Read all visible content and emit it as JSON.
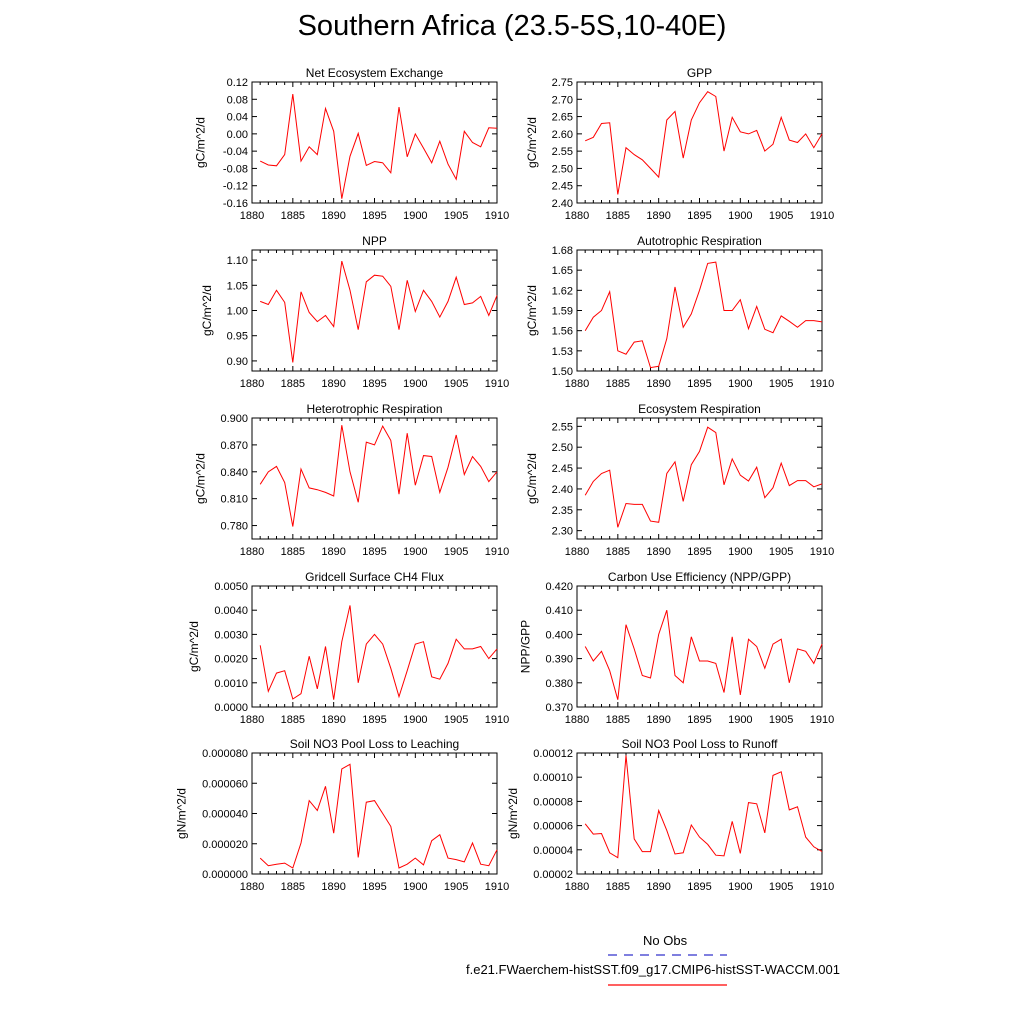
{
  "page": {
    "title": "Southern Africa (23.5-5S,10-40E)"
  },
  "legend": [
    {
      "label": "No Obs",
      "color": "#3333cc",
      "style": "dashed"
    },
    {
      "label": "f.e21.FWaerchem-histSST.f09_g17.CMIP6-histSST-WACCM.001",
      "color": "#ff0000",
      "style": "solid"
    }
  ],
  "colors": {
    "line": "#ff0000",
    "axes": "#000000"
  },
  "chart_data": [
    {
      "type": "line",
      "title": "Net Ecosystem Exchange",
      "xlabel": "",
      "ylabel": "gC/m^2/d",
      "xlim": [
        1880,
        1910
      ],
      "ylim": [
        -0.16,
        0.12
      ],
      "xticks": [
        1880,
        1885,
        1890,
        1895,
        1900,
        1905,
        1910
      ],
      "yticks": [
        -0.16,
        -0.12,
        -0.08,
        -0.04,
        0.0,
        0.04,
        0.08,
        0.12
      ],
      "yticklabels": [
        "-0.16",
        "-0.12",
        "-0.08",
        "-0.04",
        "0.00",
        "0.04",
        "0.08",
        "0.12"
      ],
      "x": [
        1881,
        1882,
        1883,
        1884,
        1885,
        1886,
        1887,
        1888,
        1889,
        1890,
        1891,
        1892,
        1893,
        1894,
        1895,
        1896,
        1897,
        1898,
        1899,
        1900,
        1901,
        1902,
        1903,
        1904,
        1905,
        1906,
        1907,
        1908,
        1909,
        1910
      ],
      "y": [
        -0.063,
        -0.072,
        -0.074,
        -0.048,
        0.092,
        -0.063,
        -0.03,
        -0.048,
        0.059,
        0.006,
        -0.15,
        -0.052,
        0.001,
        -0.073,
        -0.064,
        -0.067,
        -0.09,
        0.062,
        -0.053,
        0.0,
        -0.033,
        -0.067,
        -0.017,
        -0.07,
        -0.105,
        0.006,
        -0.02,
        -0.03,
        0.014,
        0.013
      ]
    },
    {
      "type": "line",
      "title": "GPP",
      "xlabel": "",
      "ylabel": "gC/m^2/d",
      "xlim": [
        1880,
        1910
      ],
      "ylim": [
        2.4,
        2.75
      ],
      "xticks": [
        1880,
        1885,
        1890,
        1895,
        1900,
        1905,
        1910
      ],
      "yticks": [
        2.4,
        2.45,
        2.5,
        2.55,
        2.6,
        2.65,
        2.7,
        2.75
      ],
      "yticklabels": [
        "2.40",
        "2.45",
        "2.50",
        "2.55",
        "2.60",
        "2.65",
        "2.70",
        "2.75"
      ],
      "x": [
        1881,
        1882,
        1883,
        1884,
        1885,
        1886,
        1887,
        1888,
        1889,
        1890,
        1891,
        1892,
        1893,
        1894,
        1895,
        1896,
        1897,
        1898,
        1899,
        1900,
        1901,
        1902,
        1903,
        1904,
        1905,
        1906,
        1907,
        1908,
        1909,
        1910
      ],
      "y": [
        2.58,
        2.59,
        2.63,
        2.632,
        2.425,
        2.56,
        2.54,
        2.525,
        2.5,
        2.475,
        2.64,
        2.665,
        2.53,
        2.64,
        2.69,
        2.722,
        2.708,
        2.55,
        2.648,
        2.606,
        2.6,
        2.61,
        2.55,
        2.57,
        2.648,
        2.582,
        2.575,
        2.6,
        2.56,
        2.6
      ]
    },
    {
      "type": "line",
      "title": "NPP",
      "xlabel": "",
      "ylabel": "gC/m^2/d",
      "xlim": [
        1880,
        1910
      ],
      "ylim": [
        0.88,
        1.12
      ],
      "xticks": [
        1880,
        1885,
        1890,
        1895,
        1900,
        1905,
        1910
      ],
      "yticks": [
        0.9,
        0.95,
        1.0,
        1.05,
        1.1
      ],
      "yticklabels": [
        "0.90",
        "0.95",
        "1.00",
        "1.05",
        "1.10"
      ],
      "x": [
        1881,
        1882,
        1883,
        1884,
        1885,
        1886,
        1887,
        1888,
        1889,
        1890,
        1891,
        1892,
        1893,
        1894,
        1895,
        1896,
        1897,
        1898,
        1899,
        1900,
        1901,
        1902,
        1903,
        1904,
        1905,
        1906,
        1907,
        1908,
        1909,
        1910
      ],
      "y": [
        1.018,
        1.012,
        1.04,
        1.016,
        0.897,
        1.037,
        0.996,
        0.978,
        0.99,
        0.968,
        1.098,
        1.04,
        0.962,
        1.057,
        1.07,
        1.068,
        1.048,
        0.962,
        1.06,
        0.998,
        1.04,
        1.018,
        0.987,
        1.018,
        1.066,
        1.012,
        1.015,
        1.028,
        0.99,
        1.03
      ]
    },
    {
      "type": "line",
      "title": "Autotrophic Respiration",
      "xlabel": "",
      "ylabel": "gC/m^2/d",
      "xlim": [
        1880,
        1910
      ],
      "ylim": [
        1.5,
        1.68
      ],
      "xticks": [
        1880,
        1885,
        1890,
        1895,
        1900,
        1905,
        1910
      ],
      "yticks": [
        1.5,
        1.53,
        1.56,
        1.59,
        1.62,
        1.65,
        1.68
      ],
      "yticklabels": [
        "1.50",
        "1.53",
        "1.56",
        "1.59",
        "1.62",
        "1.65",
        "1.68"
      ],
      "x": [
        1881,
        1882,
        1883,
        1884,
        1885,
        1886,
        1887,
        1888,
        1889,
        1890,
        1891,
        1892,
        1893,
        1894,
        1895,
        1896,
        1897,
        1898,
        1899,
        1900,
        1901,
        1902,
        1903,
        1904,
        1905,
        1906,
        1907,
        1908,
        1909,
        1910
      ],
      "y": [
        1.56,
        1.58,
        1.59,
        1.618,
        1.53,
        1.525,
        1.543,
        1.545,
        1.505,
        1.507,
        1.548,
        1.625,
        1.565,
        1.585,
        1.62,
        1.66,
        1.662,
        1.59,
        1.59,
        1.606,
        1.563,
        1.596,
        1.562,
        1.557,
        1.582,
        1.574,
        1.565,
        1.575,
        1.575,
        1.573
      ]
    },
    {
      "type": "line",
      "title": "Heterotrophic Respiration",
      "xlabel": "",
      "ylabel": "gC/m^2/d",
      "xlim": [
        1880,
        1910
      ],
      "ylim": [
        0.765,
        0.9
      ],
      "xticks": [
        1880,
        1885,
        1890,
        1895,
        1900,
        1905,
        1910
      ],
      "yticks": [
        0.78,
        0.81,
        0.84,
        0.87,
        0.9
      ],
      "yticklabels": [
        "0.780",
        "0.810",
        "0.840",
        "0.870",
        "0.900"
      ],
      "x": [
        1881,
        1882,
        1883,
        1884,
        1885,
        1886,
        1887,
        1888,
        1889,
        1890,
        1891,
        1892,
        1893,
        1894,
        1895,
        1896,
        1897,
        1898,
        1899,
        1900,
        1901,
        1902,
        1903,
        1904,
        1905,
        1906,
        1907,
        1908,
        1909,
        1910
      ],
      "y": [
        0.826,
        0.84,
        0.846,
        0.828,
        0.779,
        0.843,
        0.822,
        0.82,
        0.817,
        0.813,
        0.892,
        0.84,
        0.806,
        0.873,
        0.87,
        0.891,
        0.875,
        0.815,
        0.883,
        0.825,
        0.858,
        0.857,
        0.817,
        0.845,
        0.881,
        0.837,
        0.857,
        0.846,
        0.829,
        0.84
      ]
    },
    {
      "type": "line",
      "title": "Ecosystem Respiration",
      "xlabel": "",
      "ylabel": "gC/m^2/d",
      "xlim": [
        1880,
        1910
      ],
      "ylim": [
        2.28,
        2.57
      ],
      "xticks": [
        1880,
        1885,
        1890,
        1895,
        1900,
        1905,
        1910
      ],
      "yticks": [
        2.3,
        2.35,
        2.4,
        2.45,
        2.5,
        2.55
      ],
      "yticklabels": [
        "2.30",
        "2.35",
        "2.40",
        "2.45",
        "2.50",
        "2.55"
      ],
      "x": [
        1881,
        1882,
        1883,
        1884,
        1885,
        1886,
        1887,
        1888,
        1889,
        1890,
        1891,
        1892,
        1893,
        1894,
        1895,
        1896,
        1897,
        1898,
        1899,
        1900,
        1901,
        1902,
        1903,
        1904,
        1905,
        1906,
        1907,
        1908,
        1909,
        1910
      ],
      "y": [
        2.385,
        2.418,
        2.437,
        2.445,
        2.308,
        2.365,
        2.363,
        2.363,
        2.323,
        2.32,
        2.437,
        2.465,
        2.37,
        2.458,
        2.49,
        2.548,
        2.535,
        2.41,
        2.472,
        2.433,
        2.419,
        2.452,
        2.379,
        2.403,
        2.462,
        2.408,
        2.42,
        2.42,
        2.405,
        2.412
      ]
    },
    {
      "type": "line",
      "title": "Gridcell Surface CH4 Flux",
      "xlabel": "",
      "ylabel": "gC/m^2/d",
      "xlim": [
        1880,
        1910
      ],
      "ylim": [
        0.0,
        0.005
      ],
      "xticks": [
        1880,
        1885,
        1890,
        1895,
        1900,
        1905,
        1910
      ],
      "yticks": [
        0.0,
        0.001,
        0.002,
        0.003,
        0.004,
        0.005
      ],
      "yticklabels": [
        "0.0000",
        "0.0010",
        "0.0020",
        "0.0030",
        "0.0040",
        "0.0050"
      ],
      "x": [
        1881,
        1882,
        1883,
        1884,
        1885,
        1886,
        1887,
        1888,
        1889,
        1890,
        1891,
        1892,
        1893,
        1894,
        1895,
        1896,
        1897,
        1898,
        1899,
        1900,
        1901,
        1902,
        1903,
        1904,
        1905,
        1906,
        1907,
        1908,
        1909,
        1910
      ],
      "y": [
        0.00255,
        0.00065,
        0.0014,
        0.0015,
        0.00033,
        0.00055,
        0.0021,
        0.00075,
        0.0025,
        0.0003,
        0.0027,
        0.0042,
        0.001,
        0.0026,
        0.003,
        0.0026,
        0.0016,
        0.00043,
        0.0015,
        0.0026,
        0.0027,
        0.00125,
        0.00115,
        0.0018,
        0.0028,
        0.0024,
        0.0024,
        0.0025,
        0.002,
        0.0024
      ]
    },
    {
      "type": "line",
      "title": "Carbon Use Efficiency (NPP/GPP)",
      "xlabel": "",
      "ylabel": "NPP/GPP",
      "xlim": [
        1880,
        1910
      ],
      "ylim": [
        0.37,
        0.42
      ],
      "xticks": [
        1880,
        1885,
        1890,
        1895,
        1900,
        1905,
        1910
      ],
      "yticks": [
        0.37,
        0.38,
        0.39,
        0.4,
        0.41,
        0.42
      ],
      "yticklabels": [
        "0.370",
        "0.380",
        "0.390",
        "0.400",
        "0.410",
        "0.420"
      ],
      "x": [
        1881,
        1882,
        1883,
        1884,
        1885,
        1886,
        1887,
        1888,
        1889,
        1890,
        1891,
        1892,
        1893,
        1894,
        1895,
        1896,
        1897,
        1898,
        1899,
        1900,
        1901,
        1902,
        1903,
        1904,
        1905,
        1906,
        1907,
        1908,
        1909,
        1910
      ],
      "y": [
        0.395,
        0.389,
        0.393,
        0.385,
        0.373,
        0.404,
        0.394,
        0.383,
        0.382,
        0.4,
        0.41,
        0.383,
        0.38,
        0.399,
        0.389,
        0.389,
        0.388,
        0.376,
        0.399,
        0.375,
        0.398,
        0.395,
        0.386,
        0.396,
        0.398,
        0.38,
        0.394,
        0.393,
        0.388,
        0.396
      ]
    },
    {
      "type": "line",
      "title": "Soil NO3 Pool Loss to Leaching",
      "xlabel": "",
      "ylabel": "gN/m^2/d",
      "xlim": [
        1880,
        1910
      ],
      "ylim": [
        0.0,
        8e-05
      ],
      "xticks": [
        1880,
        1885,
        1890,
        1895,
        1900,
        1905,
        1910
      ],
      "yticks": [
        0.0,
        2e-05,
        4e-05,
        6e-05,
        8e-05
      ],
      "yticklabels": [
        "0.000000",
        "0.000020",
        "0.000040",
        "0.000060",
        "0.000080"
      ],
      "x": [
        1881,
        1882,
        1883,
        1884,
        1885,
        1886,
        1887,
        1888,
        1889,
        1890,
        1891,
        1892,
        1893,
        1894,
        1895,
        1896,
        1897,
        1898,
        1899,
        1900,
        1901,
        1902,
        1903,
        1904,
        1905,
        1906,
        1907,
        1908,
        1909,
        1910
      ],
      "y": [
        1.05e-05,
        5.5e-06,
        6.5e-06,
        7.2e-06,
        4e-06,
        2.05e-05,
        4.85e-05,
        4.2e-05,
        5.8e-05,
        2.7e-05,
        6.95e-05,
        7.25e-05,
        1.1e-05,
        4.75e-05,
        4.85e-05,
        4e-05,
        3.15e-05,
        4e-06,
        6.5e-06,
        1.05e-05,
        6e-06,
        2.2e-05,
        2.6e-05,
        1.05e-05,
        9.5e-06,
        8e-06,
        2.05e-05,
        6.5e-06,
        5.5e-06,
        1.6e-05
      ]
    },
    {
      "type": "line",
      "title": "Soil NO3 Pool Loss to Runoff",
      "xlabel": "",
      "ylabel": "gN/m^2/d",
      "xlim": [
        1880,
        1910
      ],
      "ylim": [
        2e-05,
        0.00012
      ],
      "xticks": [
        1880,
        1885,
        1890,
        1895,
        1900,
        1905,
        1910
      ],
      "yticks": [
        2e-05,
        4e-05,
        6e-05,
        8e-05,
        0.0001,
        0.00012
      ],
      "yticklabels": [
        "0.00002",
        "0.00004",
        "0.00006",
        "0.00008",
        "0.00010",
        "0.00012"
      ],
      "x": [
        1881,
        1882,
        1883,
        1884,
        1885,
        1886,
        1887,
        1888,
        1889,
        1890,
        1891,
        1892,
        1893,
        1894,
        1895,
        1896,
        1897,
        1898,
        1899,
        1900,
        1901,
        1902,
        1903,
        1904,
        1905,
        1906,
        1907,
        1908,
        1909,
        1910
      ],
      "y": [
        6.15e-05,
        5.3e-05,
        5.35e-05,
        3.75e-05,
        3.35e-05,
        0.000118,
        4.9e-05,
        3.85e-05,
        3.85e-05,
        7.25e-05,
        5.6e-05,
        3.65e-05,
        3.75e-05,
        6.05e-05,
        5.05e-05,
        4.45e-05,
        3.55e-05,
        3.5e-05,
        6.35e-05,
        3.7e-05,
        7.9e-05,
        7.8e-05,
        5.4e-05,
        0.0001015,
        0.0001045,
        7.3e-05,
        7.55e-05,
        5.05e-05,
        4.25e-05,
        3.85e-05
      ]
    }
  ]
}
